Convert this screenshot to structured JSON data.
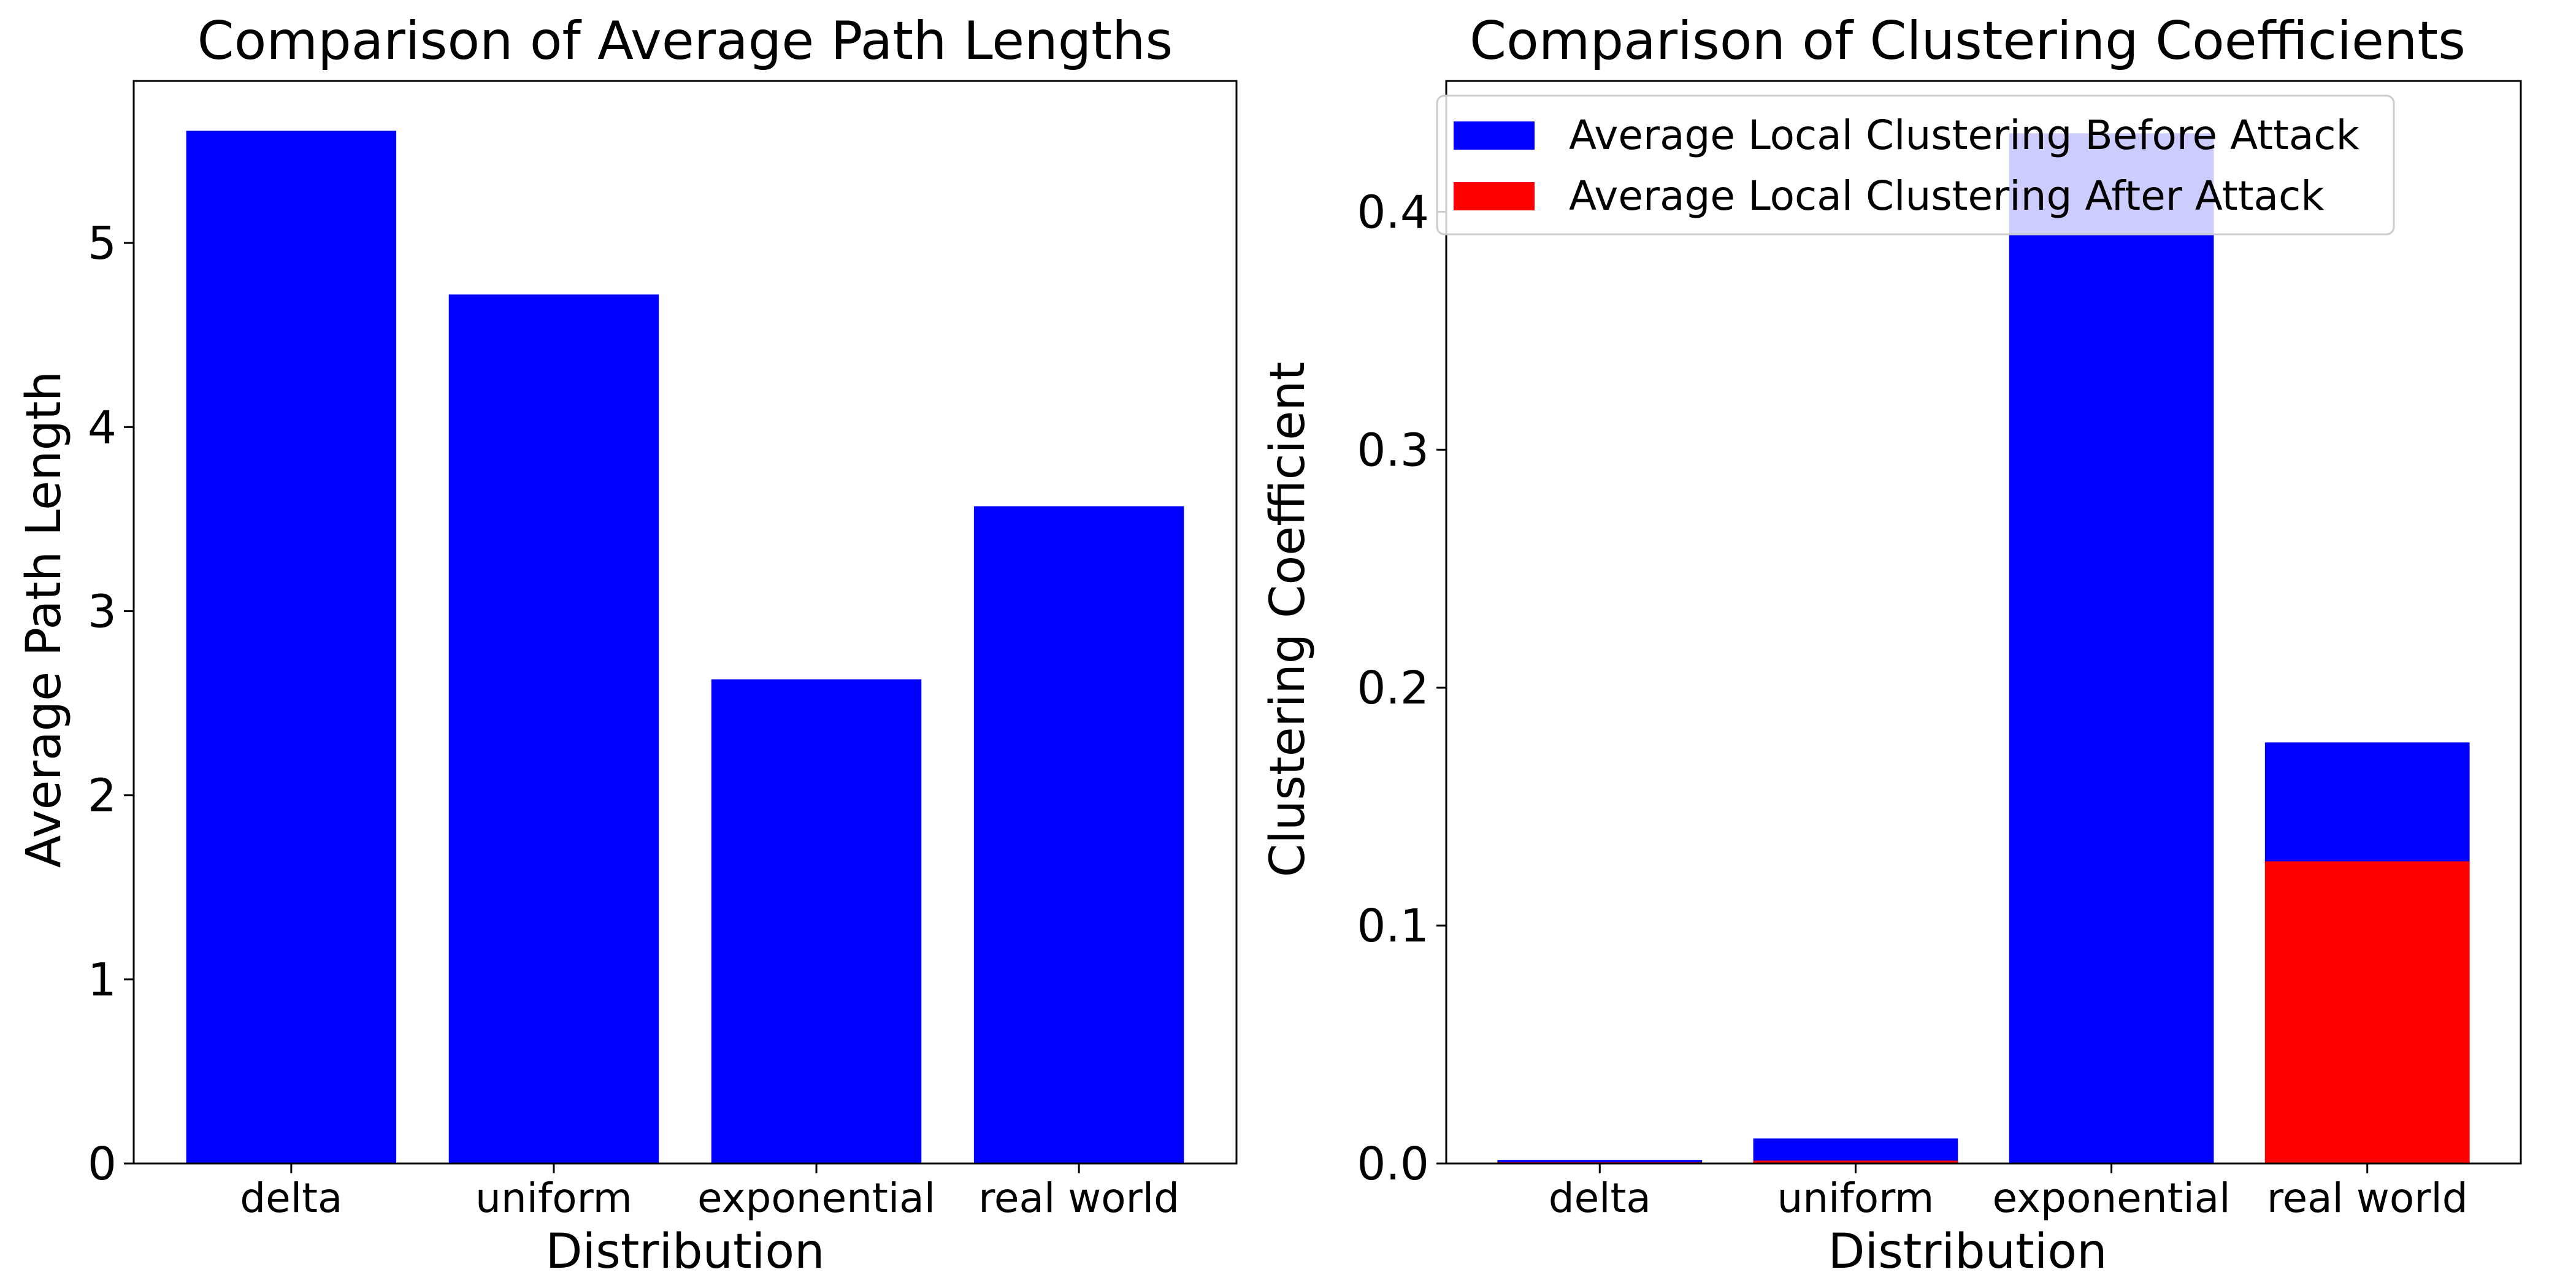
{
  "chart_data": [
    {
      "type": "bar",
      "title": "Comparison of Average Path Lengths",
      "xlabel": "Distribution",
      "ylabel": "Average Path Length",
      "categories": [
        "delta",
        "uniform",
        "exponential",
        "real world"
      ],
      "values": [
        5.61,
        4.72,
        2.63,
        3.57
      ],
      "ylim": [
        0,
        5.88
      ],
      "yticks": [
        "0",
        "1",
        "2",
        "3",
        "4",
        "5"
      ],
      "grid": false,
      "colors": {
        "bar": "#0000ff"
      }
    },
    {
      "type": "bar",
      "title": "Comparison of Clustering Coefficients",
      "xlabel": "Distribution",
      "ylabel": "Clustering Coefficient",
      "categories": [
        "delta",
        "uniform",
        "exponential",
        "real world"
      ],
      "series": [
        {
          "name": "Average Local Clustering Before Attack",
          "color": "#0000ff",
          "values": [
            0.0015,
            0.0105,
            0.433,
            0.177
          ]
        },
        {
          "name": "Average Local Clustering After Attack",
          "color": "#ff0000",
          "values": [
            0.0005,
            0.0012,
            0.0,
            0.127
          ]
        }
      ],
      "ylim": [
        0,
        0.455
      ],
      "yticks": [
        "0.0",
        "0.1",
        "0.2",
        "0.3",
        "0.4"
      ],
      "grid": false,
      "legend": "top-left"
    }
  ]
}
